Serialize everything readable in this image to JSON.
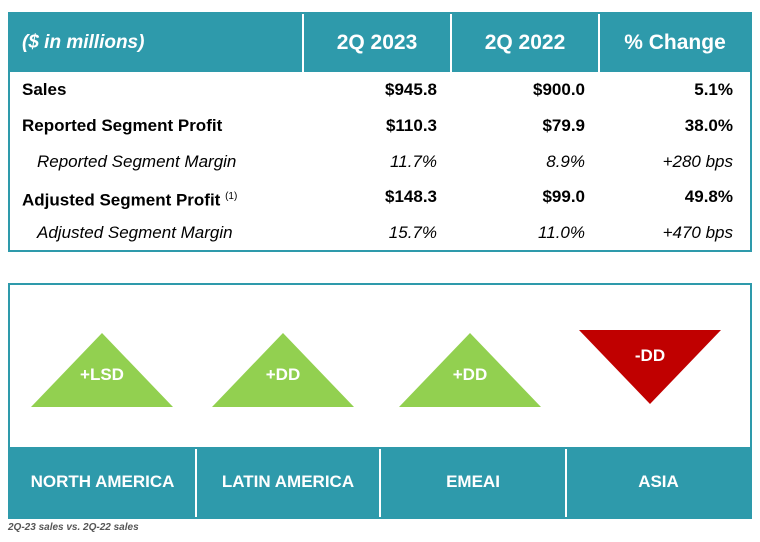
{
  "table": {
    "headers": [
      "($ in millions)",
      "2Q 2023",
      "2Q 2022",
      "% Change"
    ],
    "rows": [
      {
        "label": "Sales",
        "sup": "",
        "values": [
          "$945.8",
          "$900.0",
          "5.1%"
        ],
        "style": "bold"
      },
      {
        "label": "Reported Segment Profit",
        "sup": "",
        "values": [
          "$110.3",
          "$79.9",
          "38.0%"
        ],
        "style": "bold"
      },
      {
        "label": "Reported Segment Margin",
        "sup": "",
        "values": [
          "11.7%",
          "8.9%",
          "+280 bps"
        ],
        "style": "italic"
      },
      {
        "label": "Adjusted Segment Profit",
        "sup": "(1)",
        "values": [
          "$148.3",
          "$99.0",
          "49.8%"
        ],
        "style": "bold"
      },
      {
        "label": "Adjusted Segment Margin",
        "sup": "",
        "values": [
          "15.7%",
          "11.0%",
          "+470 bps"
        ],
        "style": "italic"
      }
    ]
  },
  "regions": [
    {
      "name": "NORTH AMERICA",
      "change": "+LSD",
      "direction": "up"
    },
    {
      "name": "LATIN AMERICA",
      "change": "+DD",
      "direction": "up"
    },
    {
      "name": "EMEAI",
      "change": "+DD",
      "direction": "up"
    },
    {
      "name": "ASIA",
      "change": "-DD",
      "direction": "down"
    }
  ],
  "colors": {
    "teal": "#2e9aab",
    "up": "#92d050",
    "down": "#c00000"
  },
  "footnote": "2Q-23 sales vs. 2Q-22 sales"
}
